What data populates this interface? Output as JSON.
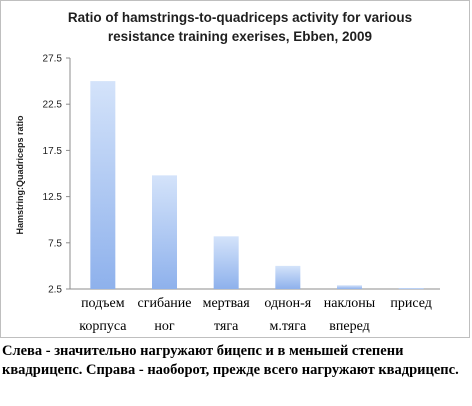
{
  "chart_data": {
    "type": "bar",
    "title_lines": [
      "Ratio of hamstrings-to-quadriceps activity for various",
      "resistance training exerises, Ebben, 2009"
    ],
    "ylabel": "Hamstring:Quadriceps ratio",
    "xlabel": "",
    "ylim": [
      2.5,
      27.5
    ],
    "yticks": [
      "27.5",
      "22.5",
      "17.5",
      "12.5",
      "7.5",
      "2.5"
    ],
    "ytick_values": [
      27.5,
      22.5,
      17.5,
      12.5,
      7.5,
      2.5
    ],
    "categories": [
      [
        "подъем",
        "корпуса"
      ],
      [
        "сгибание",
        "ног"
      ],
      [
        "мертвая",
        "тяга"
      ],
      [
        "однон-я",
        "м.тяга"
      ],
      [
        "наклоны",
        "вперед"
      ],
      [
        "присед",
        ""
      ]
    ],
    "values": [
      25.0,
      14.8,
      8.2,
      5.0,
      2.9,
      2.6
    ],
    "grid": false,
    "legend": "none",
    "colors": {
      "bar_top": "#d4e3fa",
      "bar_bottom": "#8eb1ec",
      "axis": "#8c8c8c"
    }
  },
  "caption": "Слева - значительно нагружают бицепс и в меньшей степени квадрицепс. Справа - наоборот, прежде всего нагружают квадрицепс."
}
